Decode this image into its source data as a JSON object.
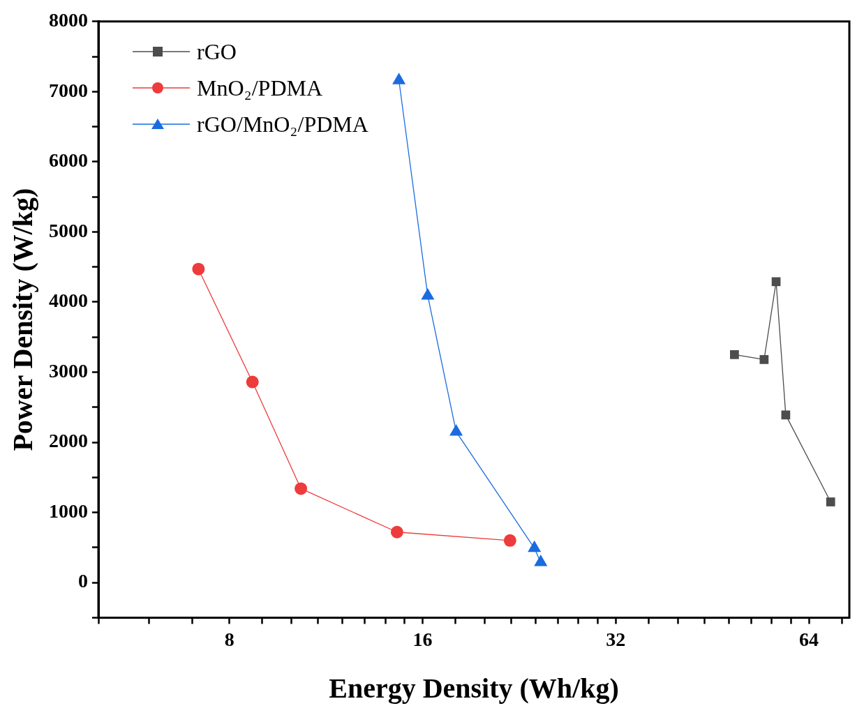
{
  "chart_data": {
    "type": "line",
    "xlabel": "Energy Density (Wh/kg)",
    "ylabel": "Power Density (W/kg)",
    "log": "x",
    "xlim": [
      5,
      74
    ],
    "xticks": [
      {
        "value": 5,
        "label": null
      },
      {
        "value": 6,
        "label": null
      },
      {
        "value": 7,
        "label": null
      },
      8,
      {
        "value": 9,
        "label": null
      },
      {
        "value": 10,
        "label": null
      },
      {
        "value": 11,
        "label": null
      },
      {
        "value": 12,
        "label": null
      },
      {
        "value": 13,
        "label": null
      },
      {
        "value": 14,
        "label": null
      },
      {
        "value": 15,
        "label": null
      },
      16,
      {
        "value": 18,
        "label": null
      },
      {
        "value": 20,
        "label": null
      },
      {
        "value": 22,
        "label": null
      },
      {
        "value": 24,
        "label": null
      },
      {
        "value": 26,
        "label": null
      },
      {
        "value": 28,
        "label": null
      },
      {
        "value": 30,
        "label": null
      },
      32,
      {
        "value": 36,
        "label": null
      },
      {
        "value": 40,
        "label": null
      },
      {
        "value": 44,
        "label": null
      },
      {
        "value": 48,
        "label": null
      },
      {
        "value": 52,
        "label": null
      },
      {
        "value": 56,
        "label": null
      },
      {
        "value": 60,
        "label": null
      },
      64,
      {
        "value": 72,
        "label": null
      }
    ],
    "ylim": [
      -500,
      8000
    ],
    "yticks": [
      {
        "value": -500,
        "label": null
      },
      0,
      {
        "value": 500,
        "label": null
      },
      1000,
      {
        "value": 1500,
        "label": null
      },
      2000,
      {
        "value": 2500,
        "label": null
      },
      3000,
      {
        "value": 3500,
        "label": null
      },
      4000,
      {
        "value": 4500,
        "label": null
      },
      5000,
      {
        "value": 5500,
        "label": null
      },
      6000,
      {
        "value": 6500,
        "label": null
      },
      7000,
      {
        "value": 7500,
        "label": null
      },
      8000
    ],
    "grid": false,
    "legend": "top left",
    "series": [
      {
        "name": "rGO",
        "color": "#4d4d4d",
        "marker": "square",
        "x": [
          49.0,
          54.5,
          56.9,
          58.9,
          69.2
        ],
        "values": [
          3250,
          3180,
          4290,
          2390,
          1150
        ]
      },
      {
        "name": "MnO₂/PDMA",
        "color": "#ee3b3b",
        "marker": "circle",
        "x": [
          7.16,
          8.69,
          10.34,
          14.6,
          21.9
        ],
        "values": [
          4470,
          2860,
          1340,
          720,
          600
        ]
      },
      {
        "name": "rGO/MnO₂/PDMA",
        "color": "#1a6be0",
        "marker": "triangle",
        "x": [
          14.7,
          16.3,
          18.05,
          23.9,
          24.45
        ],
        "values": [
          7160,
          4090,
          2150,
          490,
          290
        ]
      }
    ]
  }
}
